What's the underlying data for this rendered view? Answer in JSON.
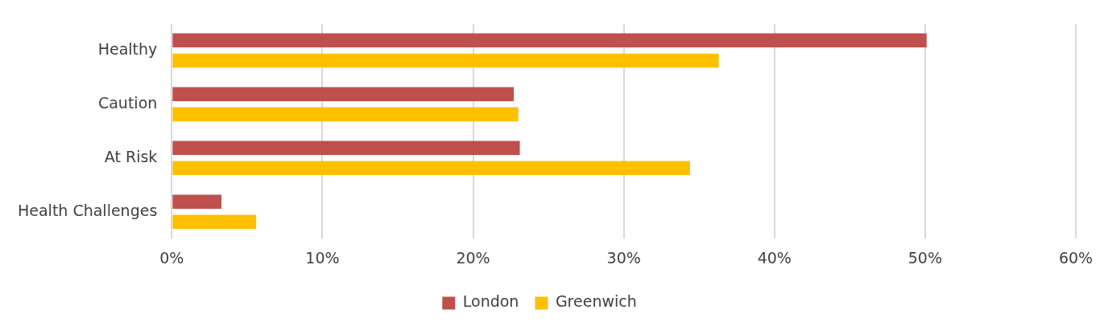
{
  "chart_data": {
    "type": "bar",
    "orientation": "horizontal",
    "categories": [
      "Healthy",
      "Caution",
      "At Risk",
      "Health Challenges"
    ],
    "series": [
      {
        "name": "London",
        "color": "#c0504d",
        "values": [
          50.1,
          22.7,
          23.1,
          3.3
        ]
      },
      {
        "name": "Greenwich",
        "color": "#ffc000",
        "values": [
          36.3,
          23.0,
          34.4,
          5.6
        ]
      }
    ],
    "xlim": [
      0,
      60
    ],
    "xticks": [
      {
        "value": 0,
        "label": "0%"
      },
      {
        "value": 10,
        "label": "10%"
      },
      {
        "value": 20,
        "label": "20%"
      },
      {
        "value": 30,
        "label": "30%"
      },
      {
        "value": 40,
        "label": "40%"
      },
      {
        "value": 50,
        "label": "50%"
      },
      {
        "value": 60,
        "label": "60%"
      }
    ],
    "grid": "x",
    "legend": "bottom"
  }
}
